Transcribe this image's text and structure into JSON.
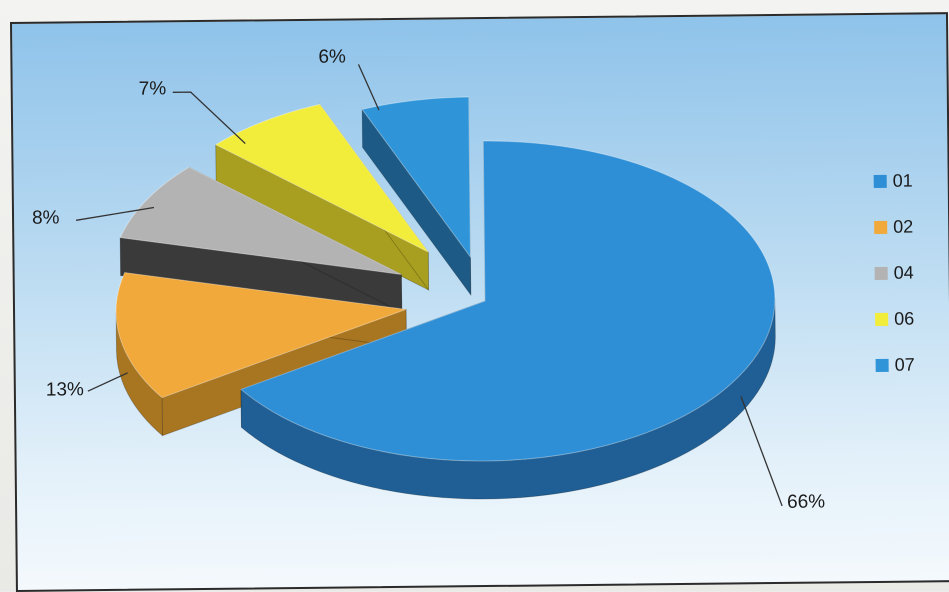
{
  "chart_data": {
    "type": "pie",
    "categories": [
      "01",
      "02",
      "04",
      "06",
      "07"
    ],
    "values": [
      66,
      13,
      8,
      7,
      6
    ],
    "data_labels": [
      "66%",
      "13%",
      "8%",
      "7%",
      "6%"
    ],
    "colors": [
      "#2f8fd6",
      "#f2a93b",
      "#b3b3b3",
      "#f2ec3a",
      "#2f95d8"
    ],
    "side_colors": [
      "#1f5f95",
      "#a87520",
      "#3a3a3a",
      "#a89e20",
      "#1d5a86"
    ],
    "legend": {
      "position": "right",
      "entries": [
        "01",
        "02",
        "04",
        "06",
        "07"
      ]
    },
    "exploded": true,
    "three_d": true
  }
}
